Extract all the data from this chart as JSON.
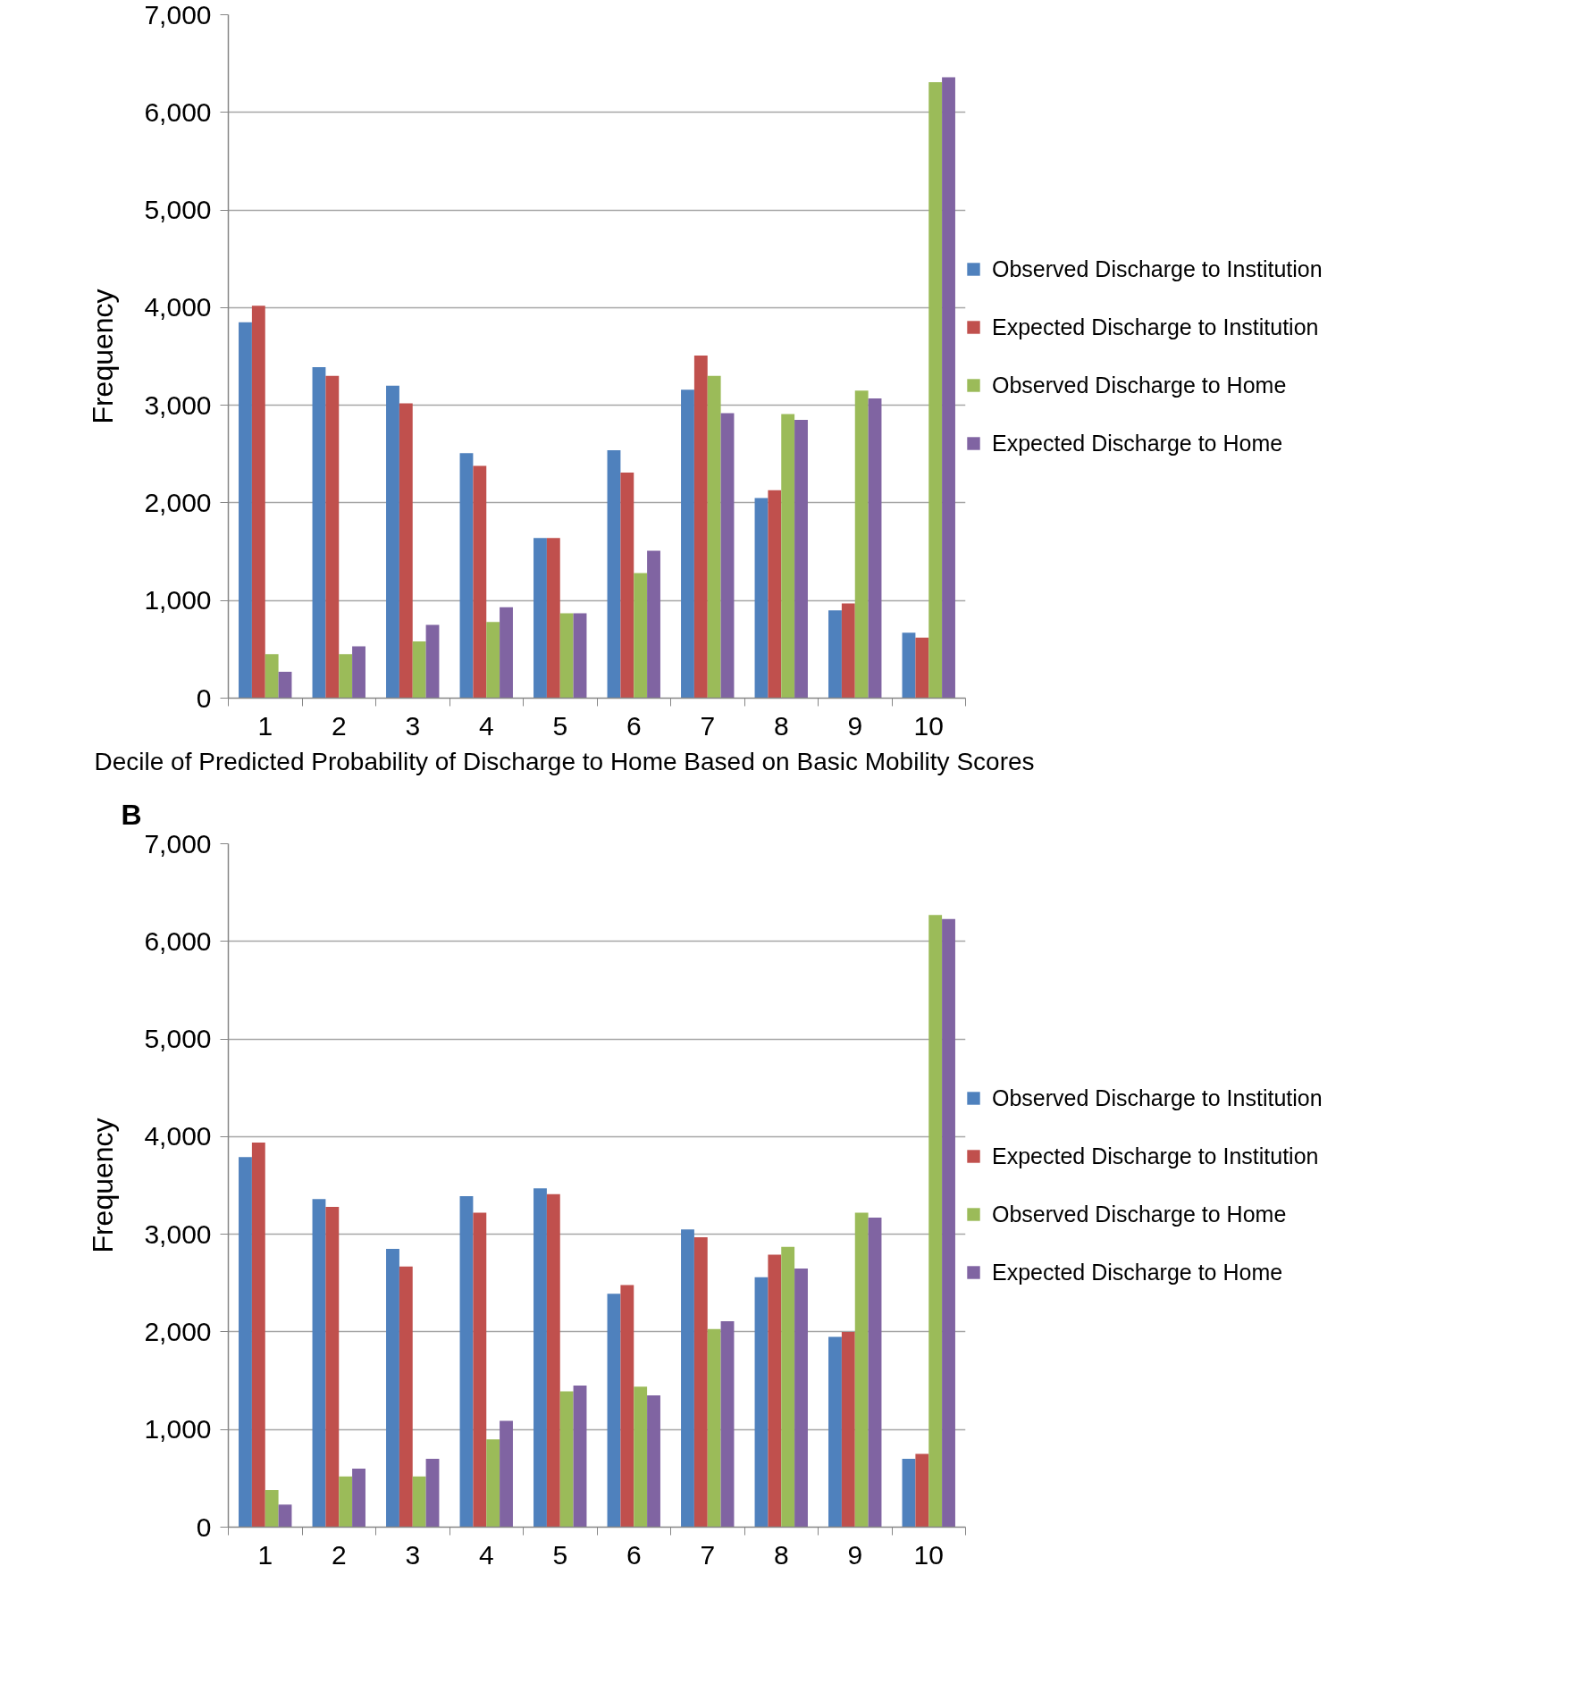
{
  "chart_data": [
    {
      "type": "bar",
      "xlabel": "Decile of Predicted Probability of Discharge to Home Based on Basic Mobility Scores",
      "ylabel": "Frequency",
      "categories": [
        "1",
        "2",
        "3",
        "4",
        "5",
        "6",
        "7",
        "8",
        "9",
        "10"
      ],
      "series": [
        {
          "name": "Observed Discharge to Institution",
          "color": "#4f81bd",
          "values": [
            3850,
            3390,
            3200,
            2510,
            1640,
            2540,
            3160,
            2050,
            900,
            670
          ]
        },
        {
          "name": "Expected Discharge to Institution",
          "color": "#c0504d",
          "values": [
            4020,
            3300,
            3020,
            2380,
            1640,
            2310,
            3510,
            2130,
            970,
            620
          ]
        },
        {
          "name": "Observed Discharge to Home",
          "color": "#9bbb59",
          "values": [
            450,
            450,
            580,
            780,
            870,
            1280,
            3300,
            2910,
            3150,
            6310
          ]
        },
        {
          "name": "Expected Discharge to Home",
          "color": "#8064a2",
          "values": [
            270,
            530,
            750,
            930,
            870,
            1510,
            2920,
            2850,
            3070,
            6360
          ]
        }
      ],
      "ylim": [
        0,
        7000
      ],
      "yticks": [
        0,
        {
          "value": 1000,
          "label": "1,000"
        },
        {
          "value": 2000,
          "label": "2,000"
        },
        {
          "value": 3000,
          "label": "3,000"
        },
        {
          "value": 4000,
          "label": "4,000"
        },
        {
          "value": 5000,
          "label": "5,000"
        },
        {
          "value": 6000,
          "label": "6,000"
        },
        {
          "value": 7000,
          "label": "7,000"
        }
      ],
      "grid": "y",
      "legend": "right"
    },
    {
      "type": "bar",
      "title": "B",
      "ylabel": "Frequency",
      "categories": [
        "1",
        "2",
        "3",
        "4",
        "5",
        "6",
        "7",
        "8",
        "9",
        "10"
      ],
      "series": [
        {
          "name": "Observed Discharge to Institution",
          "color": "#4f81bd",
          "values": [
            3790,
            3360,
            2850,
            3390,
            3470,
            2390,
            3050,
            2560,
            1950,
            700
          ]
        },
        {
          "name": "Expected Discharge to Institution",
          "color": "#c0504d",
          "values": [
            3940,
            3280,
            2670,
            3220,
            3410,
            2480,
            2970,
            2790,
            2000,
            750
          ]
        },
        {
          "name": "Observed Discharge to Home",
          "color": "#9bbb59",
          "values": [
            380,
            520,
            520,
            900,
            1390,
            1440,
            2030,
            2870,
            3220,
            6270
          ]
        },
        {
          "name": "Expected Discharge to Home",
          "color": "#8064a2",
          "values": [
            230,
            600,
            700,
            1090,
            1450,
            1350,
            2110,
            2650,
            3170,
            6230
          ]
        }
      ],
      "ylim": [
        0,
        7000
      ],
      "yticks": [
        0,
        {
          "value": 1000,
          "label": "1,000"
        },
        {
          "value": 2000,
          "label": "2,000"
        },
        {
          "value": 3000,
          "label": "3,000"
        },
        {
          "value": 4000,
          "label": "4,000"
        },
        {
          "value": 5000,
          "label": "5,000"
        },
        {
          "value": 6000,
          "label": "6,000"
        },
        {
          "value": 7000,
          "label": "7,000"
        }
      ],
      "grid": "y",
      "legend": "right"
    }
  ]
}
